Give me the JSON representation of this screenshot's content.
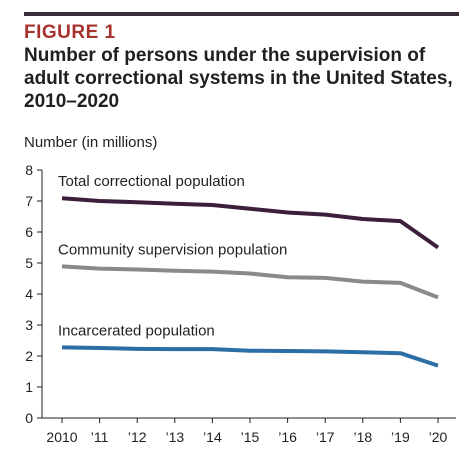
{
  "header": {
    "figure_label": "FIGURE 1",
    "title_lines": [
      "Number of persons under the supervision of",
      "adult correctional systems in the United States,",
      "2010–2020"
    ]
  },
  "chart_data": {
    "type": "line",
    "title": "Number of persons under the supervision of adult correctional systems in the United States, 2010–2020",
    "ylabel": "Number (in millions)",
    "xlabel": "",
    "ylim": [
      0,
      8
    ],
    "yticks": [
      "0",
      "1",
      "2",
      "3",
      "4",
      "5",
      "6",
      "7",
      "8"
    ],
    "categories": [
      "2010",
      "’11",
      "’12",
      "’13",
      "’14",
      "’15",
      "’16",
      "’17",
      "’18",
      "’19",
      "’20"
    ],
    "grid": false,
    "legend": "inline labels above each line",
    "series": [
      {
        "name": "Total correctional population",
        "color": "#3b1f3b",
        "values": [
          7.09,
          7.0,
          6.96,
          6.91,
          6.87,
          6.75,
          6.63,
          6.56,
          6.42,
          6.35,
          5.5
        ]
      },
      {
        "name": "Community supervision population",
        "color": "#8a8a8a",
        "values": [
          4.89,
          4.82,
          4.79,
          4.75,
          4.72,
          4.66,
          4.54,
          4.52,
          4.4,
          4.36,
          3.89
        ]
      },
      {
        "name": "Incarcerated population",
        "color": "#2b6fa6",
        "values": [
          2.28,
          2.26,
          2.23,
          2.22,
          2.22,
          2.17,
          2.16,
          2.15,
          2.12,
          2.09,
          1.69
        ]
      }
    ]
  }
}
